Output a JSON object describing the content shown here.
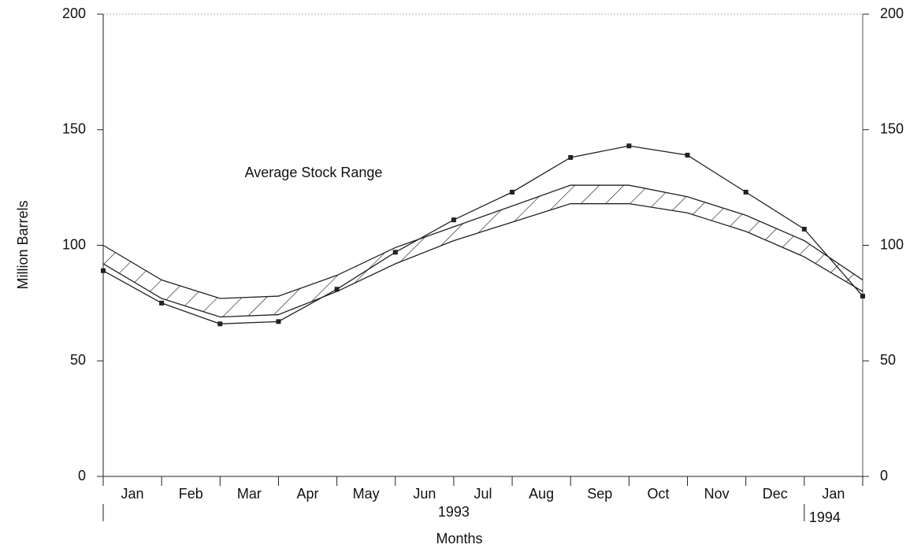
{
  "chart_data": {
    "type": "line",
    "ylabel": "Million Barrels",
    "xlabel": "Months",
    "month_labels": [
      "Jan",
      "Feb",
      "Mar",
      "Apr",
      "May",
      "Jun",
      "Jul",
      "Aug",
      "Sep",
      "Oct",
      "Nov",
      "Dec",
      "Jan"
    ],
    "year_labels": [
      "1993",
      "1994"
    ],
    "series": [
      {
        "color": "#222222",
        "values": [
          89,
          75,
          66,
          67,
          81,
          97,
          111,
          123,
          138,
          143,
          139,
          123,
          107,
          78
        ]
      }
    ],
    "range": {
      "label": "Average Stock Range",
      "color": "#222222",
      "upper": [
        100,
        85,
        77,
        78,
        87,
        99,
        108,
        117,
        126,
        126,
        121,
        113,
        102,
        85
      ],
      "lower": [
        92,
        77,
        69,
        70,
        80,
        92,
        102,
        110,
        118,
        118,
        114,
        106,
        95,
        80
      ]
    },
    "ylim": [
      0,
      200
    ],
    "yticks": [
      0,
      50,
      100,
      150,
      200
    ]
  }
}
